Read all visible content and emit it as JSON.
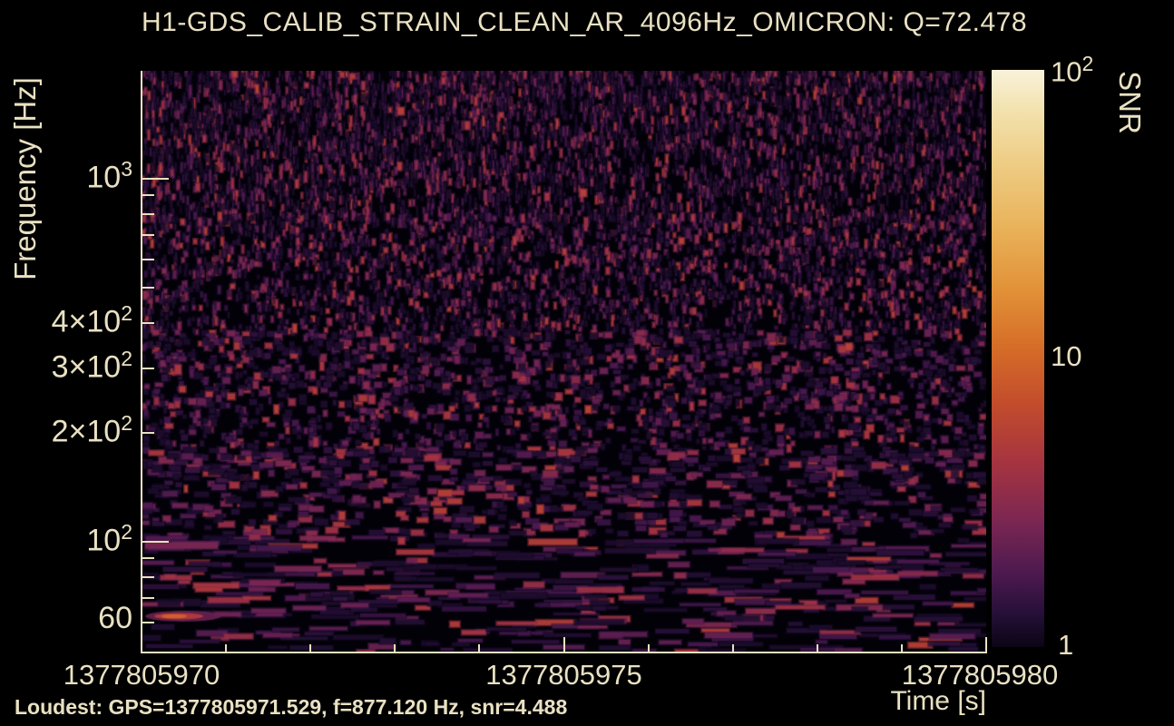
{
  "title": "H1-GDS_CALIB_STRAIN_CLEAN_AR_4096Hz_OMICRON: Q=72.478",
  "footer": {
    "loudest_text": "Loudest: GPS=1377805971.529, f=877.120 Hz, snr=4.488"
  },
  "chart_data": {
    "type": "heatmap",
    "subtype": "omicron-q-scan-spectrogram",
    "title": "H1-GDS_CALIB_STRAIN_CLEAN_AR_4096Hz_OMICRON: Q=72.478",
    "channel": "H1-GDS_CALIB_STRAIN_CLEAN_AR_4096Hz_OMICRON",
    "q_value": 72.478,
    "xlabel": "Time [s]",
    "ylabel": "Frequency [Hz]",
    "colorbar_label": "SNR",
    "x_scale": "linear",
    "x_range_gps": [
      1377805970,
      1377805980
    ],
    "x_ticks_major": [
      {
        "label": "1377805970",
        "t": 0
      },
      {
        "label": "1377805975",
        "t": 5
      },
      {
        "label": "1377805980",
        "t": 10
      }
    ],
    "x_minor_ticks_s": [
      1,
      2,
      3,
      4,
      6,
      7,
      8,
      9
    ],
    "y_scale": "log",
    "y_range_hz": [
      50,
      2000
    ],
    "y_ticks_labeled": [
      {
        "base": "10",
        "exp": "3",
        "hz": 1000,
        "decade": true
      },
      {
        "base": "4×10",
        "exp": "2",
        "hz": 400,
        "decade": false
      },
      {
        "base": "3×10",
        "exp": "2",
        "hz": 300,
        "decade": false
      },
      {
        "base": "2×10",
        "exp": "2",
        "hz": 200,
        "decade": false
      },
      {
        "base": "10",
        "exp": "2",
        "hz": 100,
        "decade": true
      },
      {
        "base": "60",
        "exp": "",
        "hz": 60,
        "decade": false
      }
    ],
    "y_minor_ticks_hz": [
      900,
      800,
      700,
      600,
      500,
      90,
      80,
      70
    ],
    "snr_scale": "log",
    "snr_range": [
      1,
      100
    ],
    "colorbar_ticks_labeled": [
      {
        "base": "10",
        "exp": "2",
        "snr": 100
      },
      {
        "base": "10",
        "exp": "",
        "snr": 10
      },
      {
        "base": "1",
        "exp": "",
        "snr": 1
      }
    ],
    "colorbar_minor_ticks": [
      90,
      80,
      70,
      60,
      50,
      40,
      30,
      20,
      9,
      8,
      7,
      6,
      5,
      4,
      3,
      2
    ],
    "colorbar_major_tick_lines": [
      10
    ],
    "loudest": {
      "gps": 1377805971.529,
      "frequency_hz": 877.12,
      "snr": 4.488
    },
    "colors": {
      "background": "#000000",
      "axis_text": "#e9e1c2",
      "plot_background": "#030108",
      "colorbar_tick": "#14090a"
    },
    "colormap_stops": [
      [
        0.0,
        "#f9f2da"
      ],
      [
        0.07,
        "#f2e2ae"
      ],
      [
        0.16,
        "#eecd85"
      ],
      [
        0.27,
        "#e9b35b"
      ],
      [
        0.38,
        "#e29238"
      ],
      [
        0.48,
        "#d66d28"
      ],
      [
        0.58,
        "#c24c2c"
      ],
      [
        0.68,
        "#a63440"
      ],
      [
        0.78,
        "#7c2752"
      ],
      [
        0.87,
        "#4e1a50"
      ],
      [
        0.94,
        "#271039"
      ],
      [
        1.0,
        "#0a0514"
      ]
    ]
  }
}
